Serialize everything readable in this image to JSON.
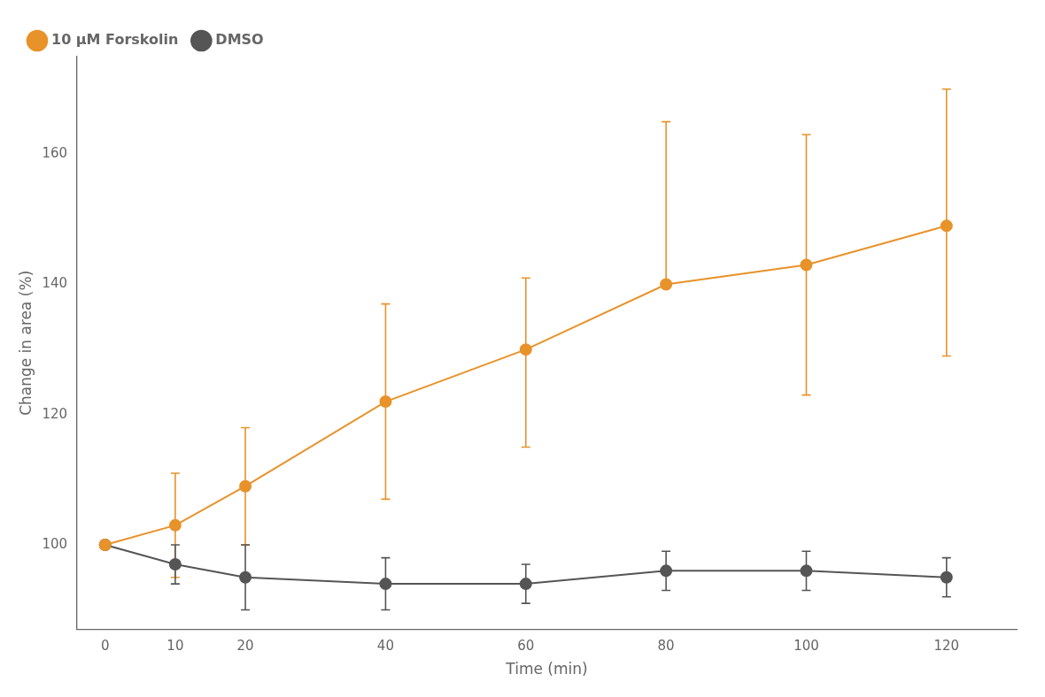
{
  "chart_data": {
    "type": "line",
    "xlabel": "Time (min)",
    "ylabel": "Change in area (%)",
    "x": [
      0,
      10,
      20,
      40,
      60,
      80,
      100,
      120
    ],
    "series": [
      {
        "name": "10 μM Forskolin",
        "color": "#E8922A",
        "marker": "circle",
        "line_style": "solid",
        "values": [
          100,
          103,
          109,
          122,
          130,
          140,
          143,
          149
        ],
        "error_up": [
          0,
          8,
          9,
          15,
          11,
          25,
          20,
          21
        ],
        "error_down": [
          0,
          8,
          9,
          15,
          15,
          0,
          20,
          20
        ]
      },
      {
        "name": "DMSO",
        "color": "#555555",
        "marker": "circle",
        "line_style": "solid",
        "values": [
          100,
          97,
          95,
          94,
          94,
          96,
          96,
          95
        ],
        "error_up": [
          0,
          3,
          5,
          4,
          3,
          3,
          3,
          3
        ],
        "error_down": [
          0,
          3,
          5,
          4,
          3,
          3,
          3,
          3
        ]
      }
    ],
    "xlim": [
      -4,
      130
    ],
    "ylim": [
      87,
      175
    ],
    "xticks": [
      0,
      10,
      20,
      40,
      60,
      80,
      100,
      120
    ],
    "yticks": [
      100,
      120,
      140,
      160
    ],
    "grid": false,
    "legend": "upper left"
  }
}
